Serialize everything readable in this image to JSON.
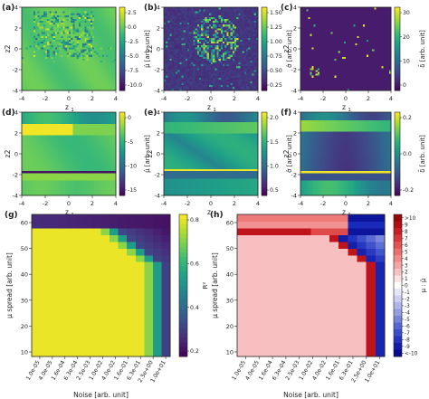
{
  "colors": {
    "viridis": [
      "#440154",
      "#482777",
      "#3e4989",
      "#31688e",
      "#26828e",
      "#1f9e89",
      "#35b779",
      "#6ece58",
      "#b5de2b",
      "#fde725"
    ],
    "diverging": [
      "#8b0000",
      "#c0141b",
      "#e04a4a",
      "#f08585",
      "#f7bfbf",
      "#ffffff",
      "#c7cdf2",
      "#8f9ae0",
      "#4d5fd1",
      "#1a2ab8",
      "#000080"
    ]
  },
  "chart_data": [
    {
      "panel": "a",
      "type": "heatmap",
      "colorscale": "viridis",
      "xlabel": "z1",
      "ylabel": "z2",
      "cbar_label": "μ̂ [arb. unit]",
      "xticks": [
        "-4",
        "-2",
        "0",
        "2",
        "4"
      ],
      "yticks": [
        "-4",
        "-2",
        "0",
        "2",
        "4"
      ],
      "cbar_ticks": [
        "2.5",
        "0.0",
        "-2.5",
        "-5.0",
        "-7.5",
        "-10.0"
      ],
      "vmin": -11,
      "vmax": 3,
      "xlim": [
        -4,
        4
      ],
      "ylim": [
        -4,
        4
      ],
      "pattern": "scatter_mid"
    },
    {
      "panel": "b",
      "type": "heatmap",
      "colorscale": "viridis",
      "xlabel": "z1",
      "ylabel": "z2",
      "cbar_label": "σ̂ [arb. unit]",
      "xticks": [
        "-4",
        "-2",
        "0",
        "2",
        "4"
      ],
      "yticks": [
        "-4",
        "-2",
        "0",
        "2",
        "4"
      ],
      "cbar_ticks": [
        "1.50",
        "1.25",
        "1.00",
        "0.75",
        "0.50",
        "0.25"
      ],
      "vmin": 0.15,
      "vmax": 1.6,
      "xlim": [
        -4,
        4
      ],
      "ylim": [
        -4,
        4
      ],
      "pattern": "scatter_low"
    },
    {
      "panel": "c",
      "type": "heatmap",
      "colorscale": "viridis",
      "xlabel": "z1",
      "ylabel": "z2",
      "cbar_label": "δ̂ [arb. unit]",
      "xticks": [
        "-4",
        "-2",
        "0",
        "2",
        "4"
      ],
      "yticks": [
        "-4",
        "-2",
        "0",
        "2",
        "4"
      ],
      "cbar_ticks": [
        "30",
        "20",
        "10",
        "0"
      ],
      "vmin": 0,
      "vmax": 30,
      "xlim": [
        -4,
        4
      ],
      "ylim": [
        -4,
        4
      ],
      "pattern": "sparse_dark"
    },
    {
      "panel": "d",
      "type": "heatmap",
      "colorscale": "viridis",
      "xlabel": "z1",
      "ylabel": "z2",
      "cbar_label": "μ̂ [arb. unit]",
      "xticks": [
        "-4",
        "-2",
        "0",
        "2",
        "4"
      ],
      "yticks": [
        "-4",
        "-2",
        "0",
        "2",
        "4"
      ],
      "cbar_ticks": [
        "0",
        "-5",
        "-10",
        "-15"
      ],
      "vmin": -17,
      "vmax": 3,
      "xlim": [
        -4,
        4
      ],
      "ylim": [
        -4,
        4
      ],
      "pattern": "bands_d"
    },
    {
      "panel": "e",
      "type": "heatmap",
      "colorscale": "viridis",
      "xlabel": "z1",
      "ylabel": "z2",
      "cbar_label": "σ̂ [arb. unit]",
      "xticks": [
        "-4",
        "-2",
        "0",
        "2",
        "4"
      ],
      "yticks": [
        "-4",
        "-2",
        "0",
        "2",
        "4"
      ],
      "cbar_ticks": [
        "2.0",
        "1.5",
        "1.0",
        "0.5"
      ],
      "vmin": 0.3,
      "vmax": 2.2,
      "xlim": [
        -4,
        4
      ],
      "ylim": [
        -4,
        4
      ],
      "pattern": "bands_e"
    },
    {
      "panel": "f",
      "type": "heatmap",
      "colorscale": "viridis",
      "xlabel": "z1",
      "ylabel": "z2",
      "cbar_label": "δ̂ [arb. unit]",
      "xticks": [
        "-4",
        "-2",
        "0",
        "2",
        "4"
      ],
      "yticks": [
        "-4",
        "-2",
        "0",
        "2",
        "4"
      ],
      "cbar_ticks": [
        "0.2",
        "0.0",
        "-0.2"
      ],
      "vmin": -0.3,
      "vmax": 0.3,
      "xlim": [
        -4,
        4
      ],
      "ylim": [
        -4,
        4
      ],
      "pattern": "bands_f"
    },
    {
      "panel": "g",
      "type": "heatmap",
      "colorscale": "viridis",
      "xlabel": "Noise [arb. unit]",
      "ylabel": "μ spread [arb. unit]",
      "cbar_label": "R²",
      "xticks": [
        "1.0e-05",
        "4.0e-05",
        "1.6e-04",
        "6.3e-04",
        "2.5e-03",
        "1.0e-02",
        "4.0e-02",
        "1.6e-01",
        "6.3e-01",
        "2.5e+00",
        "1.0e+01"
      ],
      "yticks": [
        "10",
        "20",
        "30",
        "40",
        "50",
        "60"
      ],
      "cbar_ticks": [
        "0.8",
        "0.6",
        "0.4",
        "0.2"
      ],
      "vmin": 0.05,
      "vmax": 0.95,
      "pattern": "r2"
    },
    {
      "panel": "h",
      "type": "heatmap",
      "colorscale": "diverging",
      "xlabel": "Noise [arb. unit]",
      "ylabel": "μ spread [arb. unit]",
      "cbar_label": "μ : μ̂",
      "xticks": [
        "1.0e-05",
        "4.0e-05",
        "1.6e-04",
        "6.3e-04",
        "2.5e-03",
        "1.0e-02",
        "4.0e-02",
        "1.6e-01",
        "6.3e-01",
        "2.5e+00",
        "1.0e+01"
      ],
      "yticks": [
        "10",
        "20",
        "30",
        "40",
        "50",
        "60"
      ],
      "cbar_ticks": [
        ">10",
        "9",
        "8",
        "7",
        "6",
        "5",
        "4",
        "3",
        "2",
        "1",
        "0",
        "-1",
        "-2",
        "-3",
        "-4",
        "-5",
        "-6",
        "-7",
        "-8",
        "-9",
        "<-10"
      ],
      "vmin": -10,
      "vmax": 10,
      "pattern": "ratio"
    }
  ]
}
